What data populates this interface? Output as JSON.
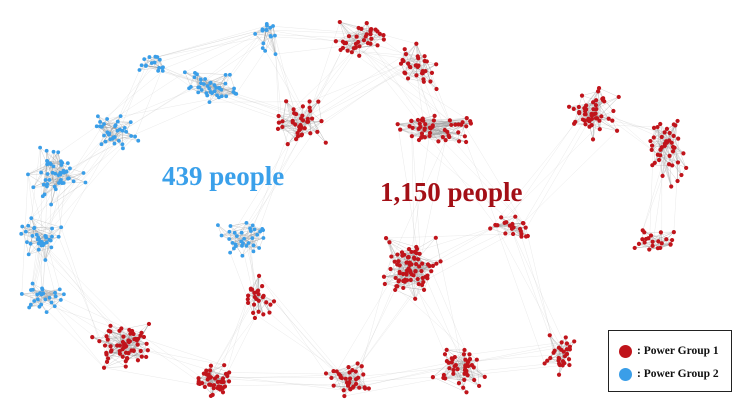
{
  "colors": {
    "group1": "#c0141b",
    "group2": "#3a9ee8",
    "edge": "#9a9a9a",
    "group1_label": "#a30f16",
    "group2_label": "#3aa0ea"
  },
  "labels": {
    "group2_count": "439 people",
    "group1_count": "1,150 people"
  },
  "legend": {
    "items": [
      {
        "label": ": Power Group 1",
        "color": "#c0141b"
      },
      {
        "label": ": Power Group 2",
        "color": "#3a9ee8"
      }
    ]
  }
}
